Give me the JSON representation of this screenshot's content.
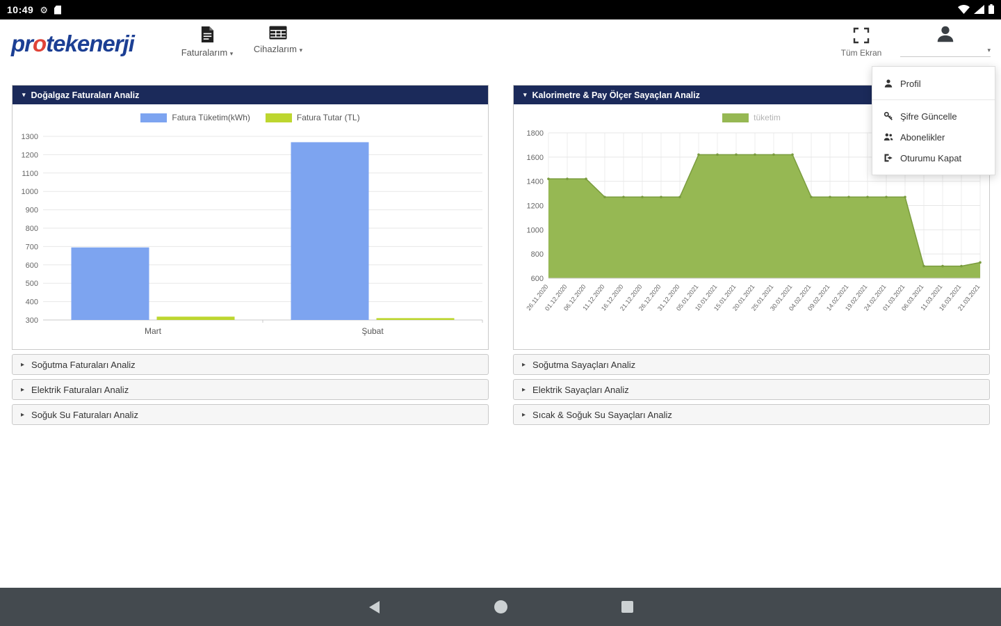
{
  "status_bar": {
    "time": "10:49"
  },
  "header": {
    "logo_part1": "pr",
    "logo_o": "o",
    "logo_part2": "tekenerji",
    "menu_faturalarim": "Faturalarım",
    "menu_cihazlarim": "Cihazlarım",
    "fullscreen_label": "Tüm Ekran"
  },
  "user_menu": {
    "items": [
      {
        "label": "Profil"
      },
      {
        "label": "Şifre Güncelle"
      },
      {
        "label": "Abonelikler"
      },
      {
        "label": "Oturumu Kapat"
      }
    ]
  },
  "left_panel": {
    "title": "Doğalgaz Faturaları Analiz",
    "accordions": [
      "Soğutma Faturaları Analiz",
      "Elektrik Faturaları Analiz",
      "Soğuk Su Faturaları Analiz"
    ]
  },
  "right_panel": {
    "title": "Kalorimetre & Pay Ölçer Sayaçları Analiz",
    "accordions": [
      "Soğutma Sayaçları Analiz",
      "Elektrik Sayaçları Analiz",
      "Sıcak & Soğuk Su Sayaçları Analiz"
    ]
  },
  "chart_data": [
    {
      "type": "bar",
      "title": "Doğalgaz Faturaları Analiz",
      "categories": [
        "Mart",
        "Şubat"
      ],
      "series": [
        {
          "name": "Fatura Tüketim(kWh)",
          "color": "#7da4f0",
          "values": [
            695,
            1268
          ]
        },
        {
          "name": "Fatura Tutar (TL)",
          "color": "#bdd62f",
          "values": [
            318,
            310
          ]
        }
      ],
      "ylim": [
        300,
        1300
      ],
      "ytick_step": 100,
      "grid": true,
      "legend_position": "top"
    },
    {
      "type": "area",
      "title": "Kalorimetre & Pay Ölçer Sayaçları Analiz",
      "legend": "tüketim",
      "fill_color": "#96b853",
      "line_color": "#7a9c3e",
      "x": [
        "26.11.2020",
        "01.12.2020",
        "06.12.2020",
        "11.12.2020",
        "16.12.2020",
        "21.12.2020",
        "26.12.2020",
        "31.12.2020",
        "05.01.2021",
        "10.01.2021",
        "15.01.2021",
        "20.01.2021",
        "25.01.2021",
        "30.01.2021",
        "04.02.2021",
        "09.02.2021",
        "14.02.2021",
        "19.02.2021",
        "24.02.2021",
        "01.03.2021",
        "06.03.2021",
        "11.03.2021",
        "16.03.2021",
        "21.03.2021"
      ],
      "values": [
        1420,
        1420,
        1420,
        1270,
        1270,
        1270,
        1270,
        1270,
        1620,
        1620,
        1620,
        1620,
        1620,
        1620,
        1270,
        1270,
        1270,
        1270,
        1270,
        1270,
        700,
        700,
        700,
        730
      ],
      "ylim": [
        600,
        1800
      ],
      "ytick_step": 200,
      "grid": true,
      "legend_position": "top"
    }
  ]
}
